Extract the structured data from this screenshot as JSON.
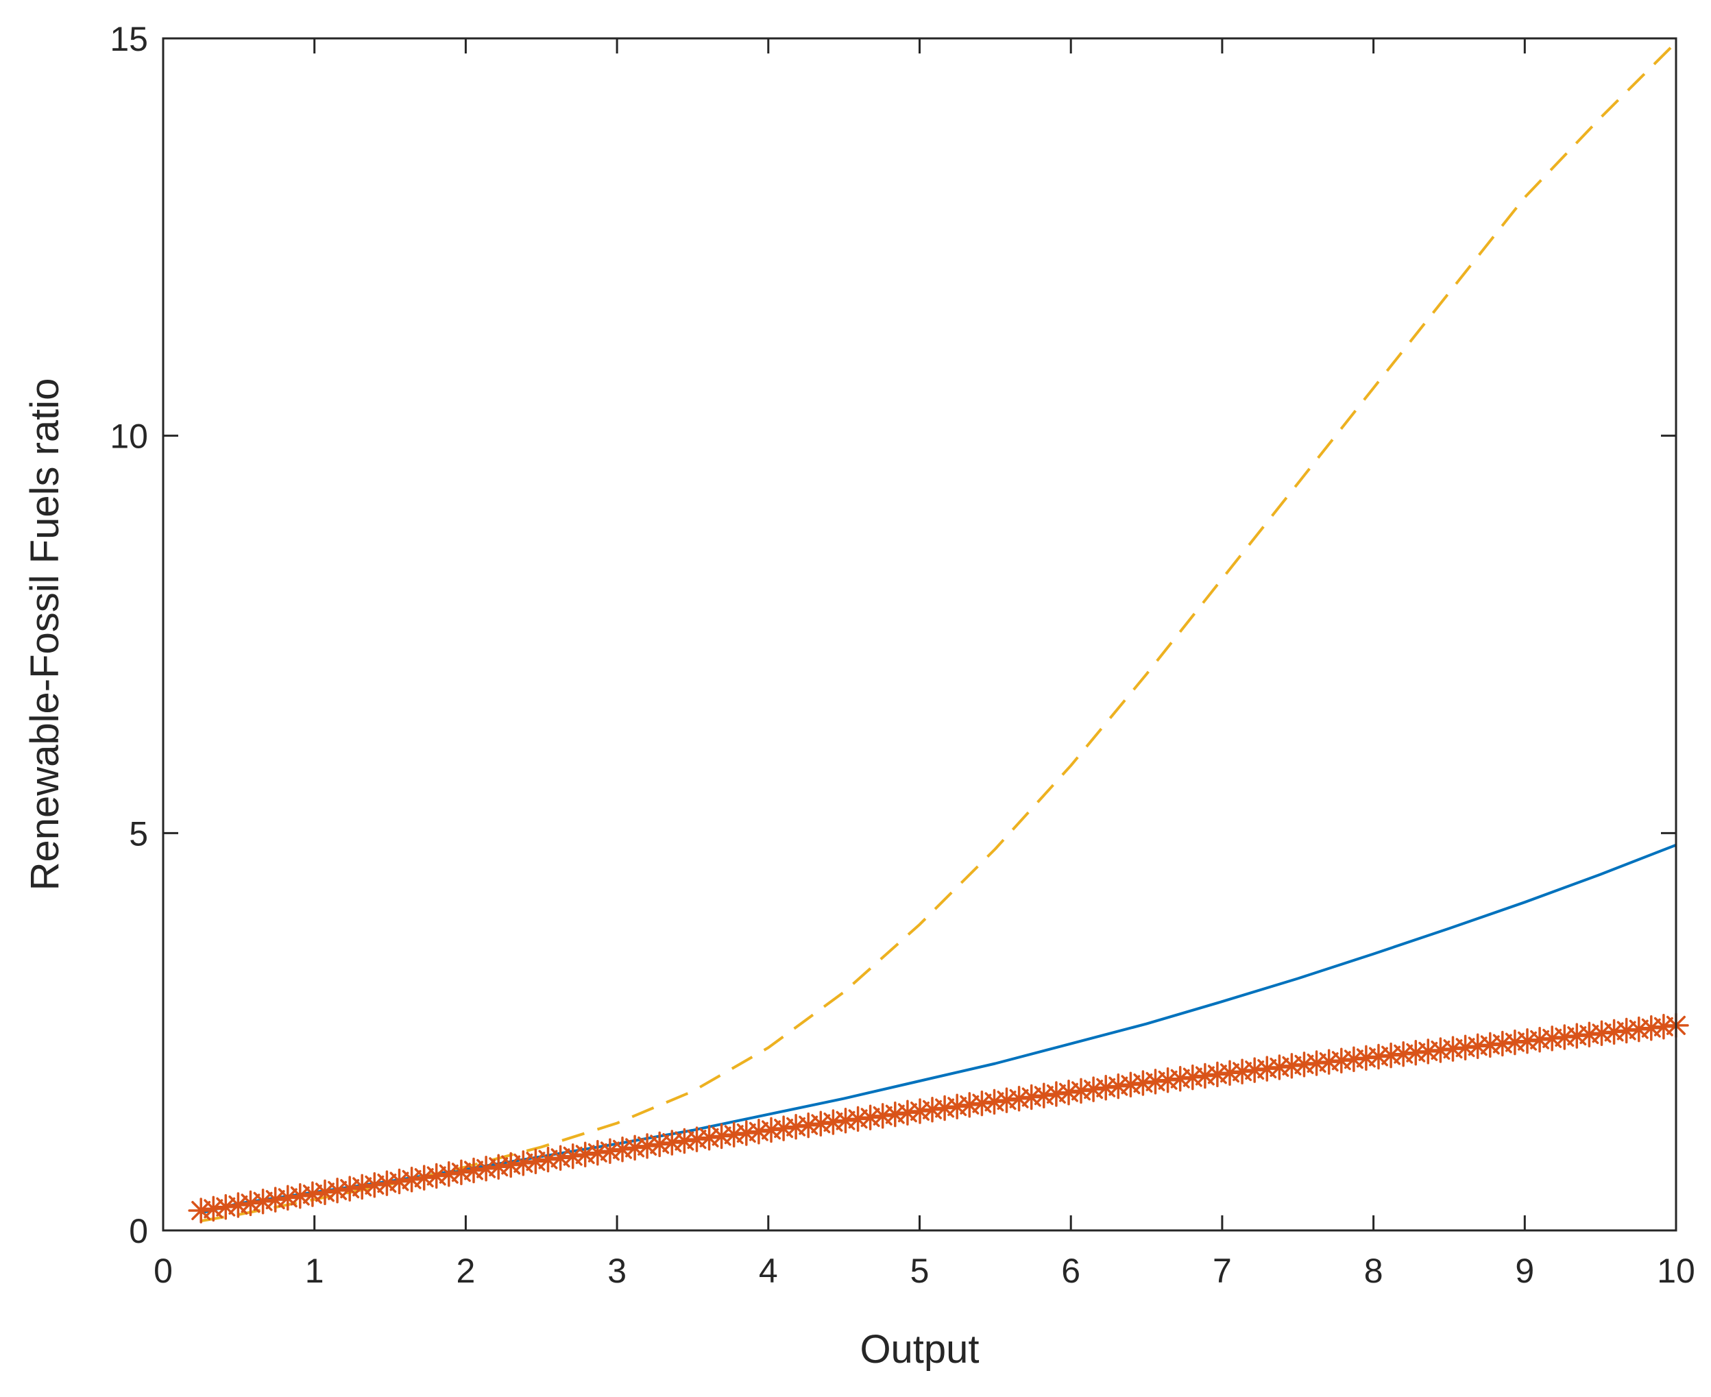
{
  "chart_data": {
    "type": "line",
    "title": "",
    "xlabel": "Output",
    "ylabel": "Renewable-Fossil Fuels ratio",
    "xlim": [
      0,
      10
    ],
    "ylim": [
      0,
      15
    ],
    "xticks": [
      0,
      1,
      2,
      3,
      4,
      5,
      6,
      7,
      8,
      9,
      10
    ],
    "yticks": [
      0,
      5,
      10,
      15
    ],
    "xtick_labels": [
      "0",
      "1",
      "2",
      "3",
      "4",
      "5",
      "6",
      "7",
      "8",
      "9",
      "10"
    ],
    "ytick_labels": [
      "0",
      "5",
      "10",
      "15"
    ],
    "grid": false,
    "box": true,
    "legend": null,
    "series": [
      {
        "color": "#0072BD",
        "line_style": "solid",
        "marker": "none",
        "x": [
          0.25,
          0.5,
          1,
          1.5,
          2,
          2.5,
          3,
          3.5,
          4,
          4.5,
          5,
          5.5,
          6,
          6.5,
          7,
          7.5,
          8,
          8.5,
          9,
          9.5,
          10
        ],
        "y": [
          0.22,
          0.34,
          0.48,
          0.62,
          0.77,
          0.93,
          1.09,
          1.26,
          1.46,
          1.66,
          1.88,
          2.1,
          2.35,
          2.6,
          2.88,
          3.17,
          3.48,
          3.8,
          4.13,
          4.48,
          4.85
        ]
      },
      {
        "color": "#D95319",
        "line_style": "solid",
        "marker": "asterisk",
        "x": [
          0.25,
          0.5,
          1,
          1.5,
          2,
          2.5,
          3,
          3.5,
          4,
          4.5,
          5,
          5.5,
          6,
          6.5,
          7,
          7.5,
          8,
          8.5,
          9,
          9.5,
          10
        ],
        "y": [
          0.25,
          0.32,
          0.46,
          0.6,
          0.74,
          0.88,
          1.01,
          1.14,
          1.26,
          1.38,
          1.5,
          1.62,
          1.74,
          1.86,
          1.97,
          2.08,
          2.18,
          2.28,
          2.38,
          2.48,
          2.58
        ]
      },
      {
        "color": "#EDB120",
        "line_style": "dashed",
        "marker": "none",
        "x": [
          0.25,
          0.5,
          1,
          1.5,
          2,
          2.5,
          3,
          3.5,
          4,
          4.5,
          5,
          5.5,
          6,
          6.5,
          7,
          7.5,
          8,
          8.5,
          9,
          9.5,
          10
        ],
        "y": [
          0.12,
          0.2,
          0.39,
          0.58,
          0.8,
          1.05,
          1.35,
          1.75,
          2.3,
          3.0,
          3.85,
          4.8,
          5.85,
          7.0,
          8.2,
          9.4,
          10.6,
          11.8,
          13.0,
          14.0,
          14.95
        ]
      }
    ]
  }
}
